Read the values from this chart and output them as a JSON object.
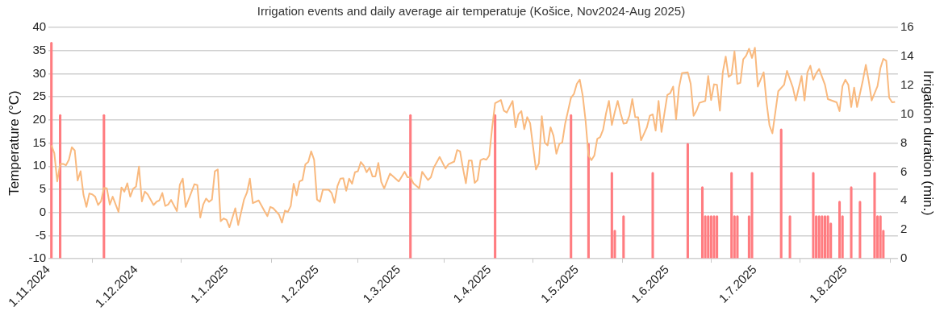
{
  "chart_data": {
    "type": "line",
    "title": "Irrigation events and daily average air temperatuje (Košice, Nov2024-Aug 2025)",
    "ylabel": "Temperature (°C)",
    "y2label": "Irrigation duration (min.)",
    "xlim": [
      "2024-11-01",
      "2025-08-19"
    ],
    "xticks": [
      {
        "value": "2024-11-01",
        "label": "1.11.2024"
      },
      {
        "value": "2024-12-01",
        "label": "1.12.2024"
      },
      {
        "value": "2025-01-01",
        "label": "1.1.2025"
      },
      {
        "value": "2025-02-01",
        "label": "1.2.2025"
      },
      {
        "value": "2025-03-01",
        "label": "1.3.2025"
      },
      {
        "value": "2025-04-01",
        "label": "1.4.2025"
      },
      {
        "value": "2025-05-01",
        "label": "1.5.2025"
      },
      {
        "value": "2025-06-01",
        "label": "1.6.2025"
      },
      {
        "value": "2025-07-01",
        "label": "1.7.2025"
      },
      {
        "value": "2025-08-01",
        "label": "1.8.2025"
      }
    ],
    "ylim": [
      -10,
      40
    ],
    "yticks": [
      -10,
      -5,
      0,
      5,
      10,
      15,
      20,
      25,
      30,
      35,
      40
    ],
    "y2lim": [
      0,
      16
    ],
    "y2ticks": [
      0,
      2,
      4,
      6,
      8,
      10,
      12,
      14,
      16
    ],
    "grid": "y",
    "legend": false,
    "marker": "none",
    "series": [
      {
        "color": "#f9b97e",
        "x": [
          "2024-11-02",
          "2024-11-03",
          "2024-11-04",
          "2024-11-05",
          "2024-11-06",
          "2024-11-07",
          "2024-11-08",
          "2024-11-09",
          "2024-11-10",
          "2024-11-11",
          "2024-11-12",
          "2024-11-13",
          "2024-11-14",
          "2024-11-15",
          "2024-11-16",
          "2024-11-17",
          "2024-11-18",
          "2024-11-19",
          "2024-11-20",
          "2024-11-21",
          "2024-11-22",
          "2024-11-23",
          "2024-11-25",
          "2024-11-26",
          "2024-11-27",
          "2024-11-28",
          "2024-11-29",
          "2024-11-30",
          "2024-12-01",
          "2024-12-02",
          "2024-12-03",
          "2024-12-04",
          "2024-12-05",
          "2024-12-07",
          "2024-12-08",
          "2024-12-09",
          "2024-12-10",
          "2024-12-11",
          "2024-12-12",
          "2024-12-13",
          "2024-12-15",
          "2024-12-16",
          "2024-12-17",
          "2024-12-18",
          "2024-12-19",
          "2024-12-21",
          "2024-12-22",
          "2024-12-23",
          "2024-12-24",
          "2024-12-25",
          "2024-12-26",
          "2024-12-27",
          "2024-12-28",
          "2024-12-29",
          "2024-12-30",
          "2024-12-31",
          "2025-01-01",
          "2025-01-02",
          "2025-01-04",
          "2025-01-05",
          "2025-01-07",
          "2025-01-08",
          "2025-01-09",
          "2025-01-10",
          "2025-01-12",
          "2025-01-14",
          "2025-01-15",
          "2025-01-16",
          "2025-01-17",
          "2025-01-19",
          "2025-01-20",
          "2025-01-21",
          "2025-01-22",
          "2025-01-23",
          "2025-01-24",
          "2025-01-25",
          "2025-01-26",
          "2025-01-27",
          "2025-01-28",
          "2025-01-29",
          "2025-01-30",
          "2025-01-31",
          "2025-02-01",
          "2025-02-02",
          "2025-02-03",
          "2025-02-05",
          "2025-02-06",
          "2025-02-07",
          "2025-02-08",
          "2025-02-09",
          "2025-02-10",
          "2025-02-11",
          "2025-02-12",
          "2025-02-13",
          "2025-02-14",
          "2025-02-15",
          "2025-02-16",
          "2025-02-17",
          "2025-02-18",
          "2025-02-19",
          "2025-02-20",
          "2025-02-21",
          "2025-02-22",
          "2025-02-23",
          "2025-02-24",
          "2025-02-26",
          "2025-03-01",
          "2025-03-03",
          "2025-03-04",
          "2025-03-05",
          "2025-03-06",
          "2025-03-08",
          "2025-03-09",
          "2025-03-11",
          "2025-03-12",
          "2025-03-13",
          "2025-03-15",
          "2025-03-17",
          "2025-03-18",
          "2025-03-20",
          "2025-03-21",
          "2025-03-22",
          "2025-03-23",
          "2025-03-24",
          "2025-03-25",
          "2025-03-26",
          "2025-03-27",
          "2025-03-28",
          "2025-03-29",
          "2025-03-30",
          "2025-03-31",
          "2025-04-01",
          "2025-04-02",
          "2025-04-03",
          "2025-04-05",
          "2025-04-06",
          "2025-04-07",
          "2025-04-09",
          "2025-04-10",
          "2025-04-11",
          "2025-04-12",
          "2025-04-13",
          "2025-04-14",
          "2025-04-15",
          "2025-04-16",
          "2025-04-17",
          "2025-04-18",
          "2025-04-19",
          "2025-04-20",
          "2025-04-21",
          "2025-04-22",
          "2025-04-23",
          "2025-04-24",
          "2025-04-25",
          "2025-04-26",
          "2025-04-27",
          "2025-04-28",
          "2025-04-29",
          "2025-04-30",
          "2025-05-01",
          "2025-05-02",
          "2025-05-03",
          "2025-05-04",
          "2025-05-05",
          "2025-05-06",
          "2025-05-07",
          "2025-05-08",
          "2025-05-09",
          "2025-05-10",
          "2025-05-11",
          "2025-05-12",
          "2025-05-13",
          "2025-05-14",
          "2025-05-15",
          "2025-05-16",
          "2025-05-17",
          "2025-05-18",
          "2025-05-19",
          "2025-05-20",
          "2025-05-21",
          "2025-05-22",
          "2025-05-23",
          "2025-05-24",
          "2025-05-25",
          "2025-05-26",
          "2025-05-27",
          "2025-05-28",
          "2025-05-29",
          "2025-05-30",
          "2025-05-31",
          "2025-06-01",
          "2025-06-02",
          "2025-06-03",
          "2025-06-04",
          "2025-06-05",
          "2025-06-06",
          "2025-06-08",
          "2025-06-09",
          "2025-06-10",
          "2025-06-11",
          "2025-06-12",
          "2025-06-14",
          "2025-06-15",
          "2025-06-16",
          "2025-06-17",
          "2025-06-18",
          "2025-06-19",
          "2025-06-20",
          "2025-06-21",
          "2025-06-22",
          "2025-06-23",
          "2025-06-24",
          "2025-06-25",
          "2025-06-26",
          "2025-06-27",
          "2025-06-28",
          "2025-06-29",
          "2025-06-30",
          "2025-07-01",
          "2025-07-02",
          "2025-07-04",
          "2025-07-05",
          "2025-07-06",
          "2025-07-07",
          "2025-07-09",
          "2025-07-11",
          "2025-07-12",
          "2025-07-14",
          "2025-07-15",
          "2025-07-17",
          "2025-07-18",
          "2025-07-19",
          "2025-07-20",
          "2025-07-21",
          "2025-07-22",
          "2025-07-23",
          "2025-07-25",
          "2025-07-26",
          "2025-07-29",
          "2025-07-30",
          "2025-07-31",
          "2025-08-01",
          "2025-08-02",
          "2025-08-03",
          "2025-08-04",
          "2025-08-05",
          "2025-08-07",
          "2025-08-08",
          "2025-08-09",
          "2025-08-10",
          "2025-08-12",
          "2025-08-13",
          "2025-08-14",
          "2025-08-15",
          "2025-08-16",
          "2025-08-17",
          "2025-08-18"
        ],
        "values": [
          14.5,
          12.8,
          6.7,
          10.5,
          10.5,
          10.2,
          11.4,
          14.1,
          13.4,
          6.9,
          8.9,
          3.8,
          1.2,
          4.1,
          3.9,
          3.4,
          1.6,
          2.4,
          5.3,
          5.2,
          1.7,
          3.4,
          0.1,
          5.4,
          4.5,
          6.3,
          3.4,
          5.1,
          5.6,
          9.9,
          2.4,
          4.5,
          3.9,
          1.6,
          2.3,
          2.6,
          4.2,
          1.4,
          1.7,
          2.7,
          0.3,
          6.0,
          7.3,
          1.2,
          2.8,
          6.1,
          5.9,
          -1.1,
          1.7,
          3.0,
          2.3,
          2.8,
          8.9,
          9.3,
          -1.9,
          -1.3,
          -1.6,
          -3.2,
          0.9,
          -2.7,
          2.8,
          4.3,
          7.3,
          2.0,
          2.6,
          0.3,
          -0.8,
          1.2,
          0.9,
          -0.5,
          -2.2,
          0.4,
          0.1,
          1.4,
          6.2,
          3.7,
          6.7,
          7.0,
          10.4,
          10.9,
          13.2,
          11.4,
          2.8,
          2.3,
          4.9,
          4.9,
          4.2,
          2.1,
          5.7,
          7.3,
          7.4,
          4.7,
          7.3,
          6.2,
          8.7,
          8.9,
          10.9,
          10.1,
          8.7,
          9.7,
          7.8,
          7.8,
          10.7,
          6.6,
          5.2,
          8.4,
          6.7,
          8.8,
          7.6,
          7.6,
          6.3,
          5.2,
          8.8,
          7.0,
          7.6,
          9.7,
          12.0,
          9.5,
          10.4,
          11.0,
          13.5,
          13.2,
          9.5,
          6.3,
          11.2,
          11.2,
          6.4,
          7.0,
          11.3,
          11.6,
          11.4,
          12.3,
          18.4,
          23.6,
          24.3,
          22.0,
          21.6,
          24.1,
          18.4,
          21.2,
          21.9,
          18.0,
          20.6,
          19.3,
          14.2,
          9.3,
          10.6,
          20.8,
          15.1,
          14.5,
          18.4,
          16.6,
          12.7,
          14.8,
          15.1,
          19.2,
          22.0,
          24.8,
          25.6,
          27.8,
          28.7,
          25.3,
          19.8,
          12.3,
          11.3,
          12.3,
          15.9,
          16.3,
          17.9,
          21.4,
          24.1,
          18.9,
          21.7,
          24.1,
          21.4,
          19.2,
          19.3,
          20.9,
          24.5,
          20.6,
          20.6,
          15.6,
          17.0,
          18.4,
          20.9,
          21.2,
          17.7,
          24.1,
          17.4,
          21.4,
          25.4,
          25.8,
          27.2,
          20.1,
          27.0,
          30.1,
          30.3,
          27.8,
          20.9,
          22.0,
          23.7,
          24.1,
          29.5,
          24.3,
          27.7,
          27.6,
          22.0,
          30.3,
          33.7,
          29.3,
          29.8,
          34.8,
          27.8,
          28.0,
          33.1,
          33.9,
          35.4,
          33.4,
          35.6,
          27.2,
          30.3,
          23.7,
          18.8,
          17.1,
          26.2,
          27.6,
          30.6,
          27.0,
          24.2,
          29.5,
          24.2,
          30.3,
          31.7,
          28.7,
          30.1,
          31.0,
          27.6,
          24.5,
          23.8,
          21.9,
          27.3,
          28.7,
          27.6,
          22.8,
          27.0,
          22.8,
          28.6,
          31.9,
          28.4,
          24.2,
          27.3,
          31.2,
          33.2,
          32.8,
          24.8,
          23.8,
          23.9
        ]
      },
      {
        "type": "bar",
        "axis": "y2",
        "color": "#ff7c80",
        "x": [
          "2024-11-02",
          "2024-11-05",
          "2024-11-20",
          "2025-03-05",
          "2025-04-03",
          "2025-04-29",
          "2025-05-05",
          "2025-05-13",
          "2025-05-14",
          "2025-05-17",
          "2025-05-27",
          "2025-06-08",
          "2025-06-13",
          "2025-06-14",
          "2025-06-15",
          "2025-06-16",
          "2025-06-17",
          "2025-06-18",
          "2025-06-23",
          "2025-06-24",
          "2025-06-25",
          "2025-06-29",
          "2025-06-30",
          "2025-07-10",
          "2025-07-13",
          "2025-07-21",
          "2025-07-22",
          "2025-07-23",
          "2025-07-24",
          "2025-07-25",
          "2025-07-26",
          "2025-07-27",
          "2025-07-30",
          "2025-07-31",
          "2025-08-03",
          "2025-08-06",
          "2025-08-11",
          "2025-08-12",
          "2025-08-13",
          "2025-08-14"
        ],
        "values": [
          15,
          10,
          10,
          10,
          10,
          10,
          8,
          6,
          2,
          3,
          6,
          8,
          5,
          3,
          3,
          3,
          3,
          3,
          6,
          3,
          3,
          3,
          6,
          9,
          3,
          6,
          3,
          3,
          3,
          3,
          3,
          2.5,
          4,
          3,
          5,
          4,
          6,
          3,
          3,
          2
        ]
      }
    ]
  }
}
